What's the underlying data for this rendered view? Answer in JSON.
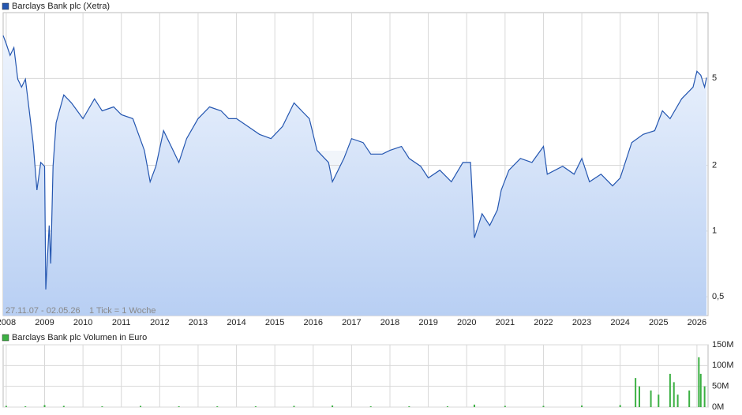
{
  "chart_data": [
    {
      "type": "line",
      "x": [
        2007.92,
        2008.0,
        2008.1,
        2008.2,
        2008.3,
        2008.4,
        2008.5,
        2008.6,
        2008.7,
        2008.8,
        2008.9,
        2009.0,
        2009.03,
        2009.12,
        2009.16,
        2009.22,
        2009.3,
        2009.5,
        2009.7,
        2010.0,
        2010.3,
        2010.5,
        2010.8,
        2011.0,
        2011.3,
        2011.6,
        2011.75,
        2011.9,
        2012.1,
        2012.3,
        2012.5,
        2012.7,
        2013.0,
        2013.3,
        2013.6,
        2013.8,
        2014.0,
        2014.3,
        2014.6,
        2014.9,
        2015.2,
        2015.5,
        2015.7,
        2015.9,
        2016.1,
        2016.4,
        2016.5,
        2016.8,
        2017.0,
        2017.3,
        2017.5,
        2017.8,
        2018.0,
        2018.3,
        2018.5,
        2018.8,
        2019.0,
        2019.3,
        2019.6,
        2019.9,
        2020.1,
        2020.2,
        2020.4,
        2020.6,
        2020.8,
        2020.9,
        2021.1,
        2021.4,
        2021.7,
        2022.0,
        2022.1,
        2022.5,
        2022.8,
        2023.0,
        2023.2,
        2023.5,
        2023.8,
        2024.0,
        2024.3,
        2024.6,
        2024.9,
        2025.1,
        2025.3,
        2025.6,
        2025.9,
        2026.0,
        2026.1,
        2026.2,
        2026.25
      ],
      "series": [
        {
          "name": "Barclays Bank plc (Xetra)",
          "color": "#2456b0",
          "values": [
            7.85,
            7.2,
            6.37,
            6.92,
            4.96,
            4.56,
            4.96,
            3.55,
            2.54,
            1.54,
            2.06,
            1.98,
            0.54,
            1.06,
            0.71,
            1.98,
            3.13,
            4.2,
            3.86,
            3.27,
            4.03,
            3.55,
            3.7,
            3.41,
            3.27,
            2.34,
            1.68,
            1.98,
            2.88,
            2.44,
            2.06,
            2.65,
            3.27,
            3.7,
            3.55,
            3.27,
            3.27,
            3.01,
            2.77,
            2.65,
            3.01,
            3.86,
            3.55,
            3.27,
            2.34,
            2.06,
            1.68,
            2.15,
            2.65,
            2.54,
            2.25,
            2.25,
            2.34,
            2.44,
            2.15,
            1.98,
            1.75,
            1.9,
            1.68,
            2.06,
            2.06,
            0.93,
            1.2,
            1.06,
            1.25,
            1.54,
            1.9,
            2.15,
            2.06,
            2.44,
            1.82,
            1.98,
            1.82,
            2.15,
            1.68,
            1.82,
            1.61,
            1.75,
            2.54,
            2.77,
            2.88,
            3.55,
            3.27,
            4.03,
            4.56,
            5.39,
            5.17,
            4.56,
            5.04
          ]
        }
      ],
      "xlim": [
        2007.92,
        2026.29
      ],
      "xticks": [
        2008,
        2009,
        2010,
        2011,
        2012,
        2013,
        2014,
        2015,
        2016,
        2017,
        2018,
        2019,
        2020,
        2021,
        2022,
        2023,
        2024,
        2025,
        2026
      ],
      "ylim": [
        0.41,
        10
      ],
      "yticks": [
        {
          "value": 0.5,
          "label": "0,5"
        },
        1,
        2,
        5
      ],
      "log_scale": true,
      "grid": true,
      "annotations": [
        "27.11.07 - 02.05.26",
        "1 Tick = 1 Woche"
      ]
    },
    {
      "type": "bar",
      "x": [
        2008.0,
        2008.5,
        2009.0,
        2009.5,
        2010.5,
        2011.5,
        2012.5,
        2013.5,
        2014.5,
        2015.5,
        2016.5,
        2017.5,
        2018.5,
        2019.5,
        2020.2,
        2021.0,
        2022.0,
        2023.0,
        2024.0,
        2024.4,
        2024.5,
        2024.8,
        2025.0,
        2025.3,
        2025.4,
        2025.5,
        2025.8,
        2026.05,
        2026.1,
        2026.2
      ],
      "series": [
        {
          "name": "Barclays Bank plc Volumen in Euro",
          "color": "#3cb043",
          "values": [
            3000000,
            2000000,
            5000000,
            3000000,
            2000000,
            3000000,
            2000000,
            2000000,
            2000000,
            3000000,
            4000000,
            2000000,
            2000000,
            2000000,
            6000000,
            3000000,
            3000000,
            4000000,
            5000000,
            70000000,
            50000000,
            40000000,
            30000000,
            80000000,
            60000000,
            30000000,
            40000000,
            120000000,
            80000000,
            50000000
          ]
        }
      ],
      "xlim": [
        2007.92,
        2026.29
      ],
      "ylim": [
        0,
        150000000
      ],
      "yticks": [
        {
          "value": 0,
          "label": "0M"
        },
        {
          "value": 50000000,
          "label": "50M"
        },
        {
          "value": 100000000,
          "label": "100M"
        },
        {
          "value": 150000000,
          "label": "150M"
        }
      ],
      "grid": true
    }
  ]
}
